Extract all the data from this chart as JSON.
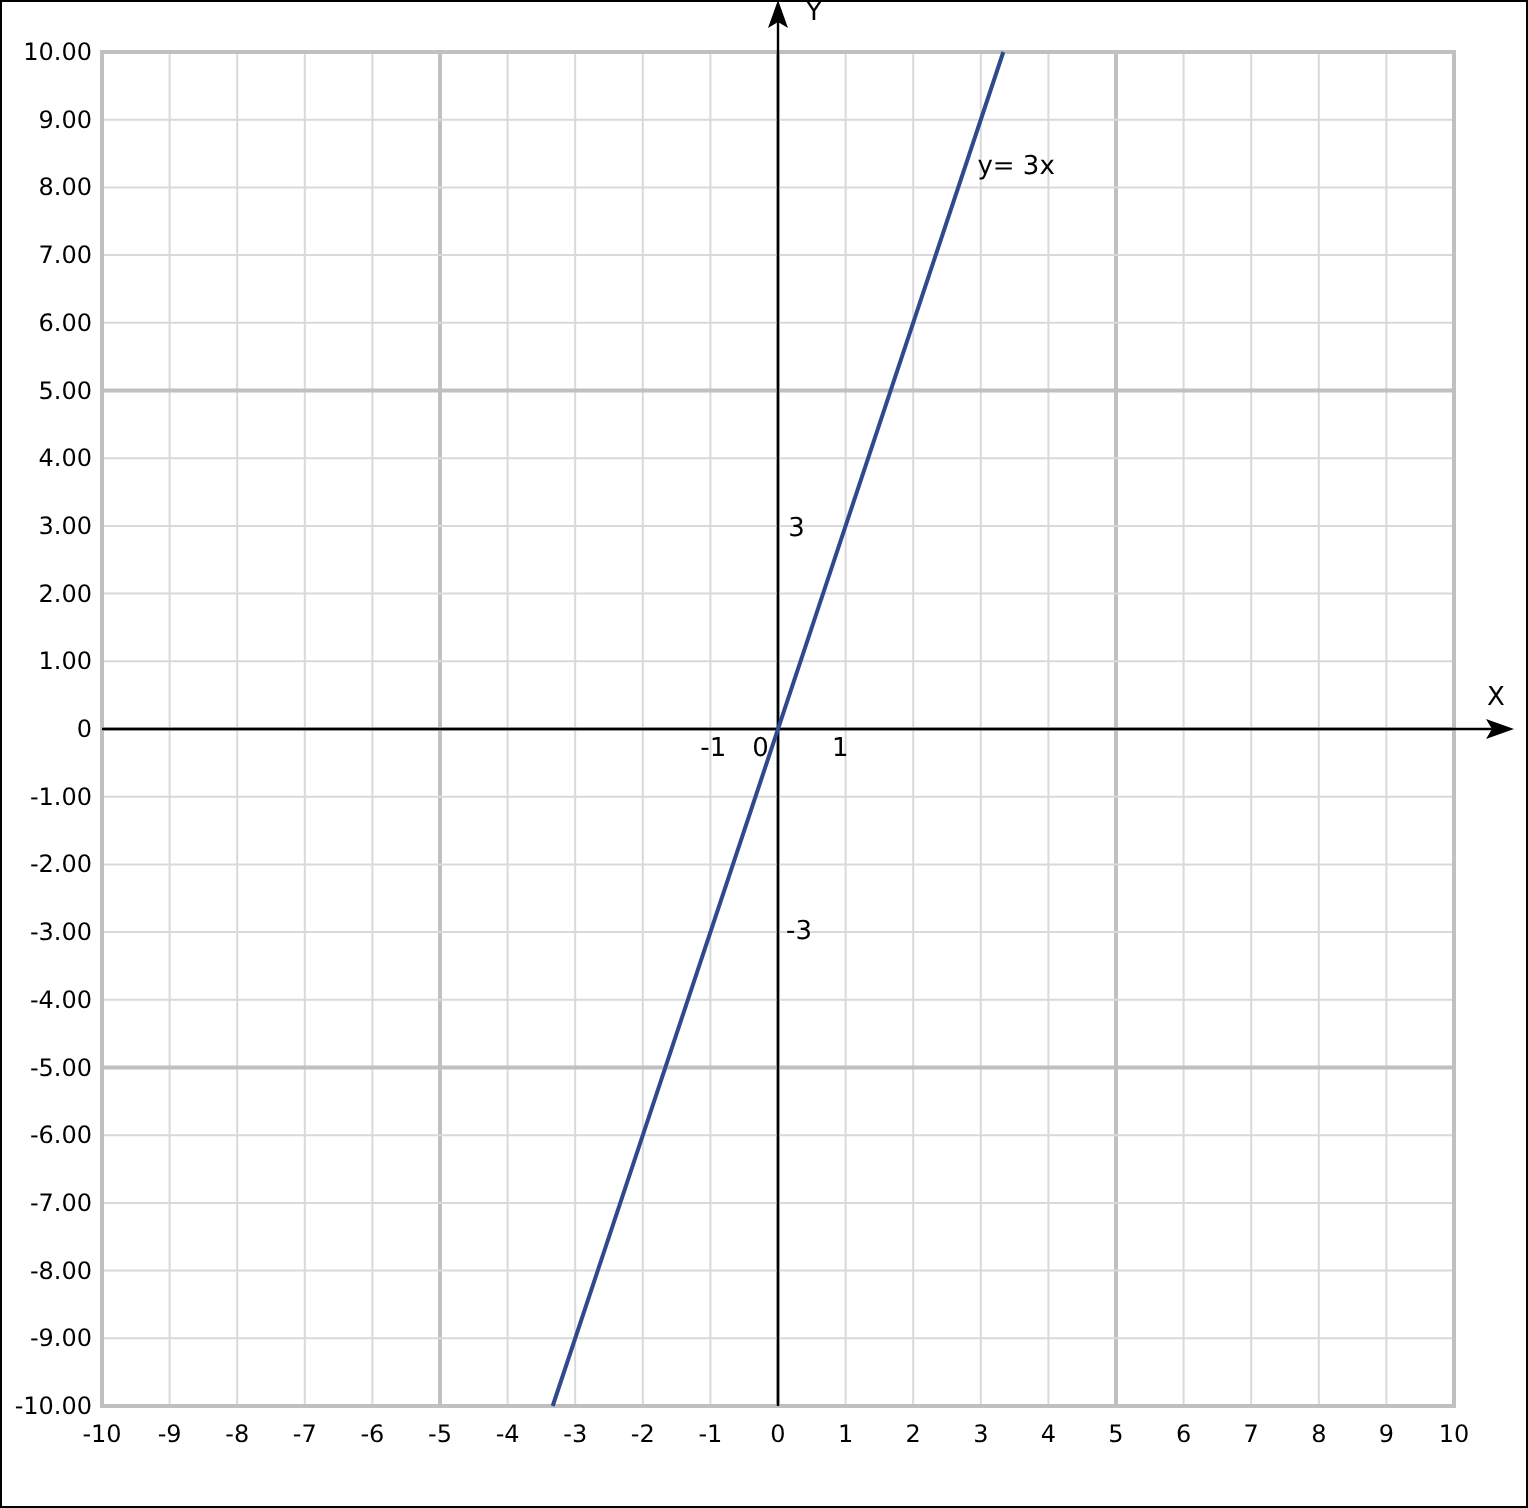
{
  "chart_data": {
    "type": "line",
    "xlabel": "X",
    "ylabel": "Y",
    "xlim": [
      -10,
      10
    ],
    "ylim": [
      -10,
      10
    ],
    "xticks": [
      -10,
      -9,
      -8,
      -7,
      -6,
      -5,
      -4,
      -3,
      -2,
      -1,
      0,
      1,
      2,
      3,
      4,
      5,
      6,
      7,
      8,
      9,
      10
    ],
    "yticks": [
      {
        "value": -10,
        "label": "-10.00"
      },
      {
        "value": -9,
        "label": "-9.00"
      },
      {
        "value": -8,
        "label": "-8.00"
      },
      {
        "value": -7,
        "label": "-7.00"
      },
      {
        "value": -6,
        "label": "-6.00"
      },
      {
        "value": -5,
        "label": "-5.00"
      },
      {
        "value": -4,
        "label": "-4.00"
      },
      {
        "value": -3,
        "label": "-3.00"
      },
      {
        "value": -2,
        "label": "-2.00"
      },
      {
        "value": -1,
        "label": "-1.00"
      },
      {
        "value": 0,
        "label": "0"
      },
      {
        "value": 1,
        "label": "1.00"
      },
      {
        "value": 2,
        "label": "2.00"
      },
      {
        "value": 3,
        "label": "3.00"
      },
      {
        "value": 4,
        "label": "4.00"
      },
      {
        "value": 5,
        "label": "5.00"
      },
      {
        "value": 6,
        "label": "6.00"
      },
      {
        "value": 7,
        "label": "7.00"
      },
      {
        "value": 8,
        "label": "8.00"
      },
      {
        "value": 9,
        "label": "9.00"
      },
      {
        "value": 10,
        "label": "10.00"
      }
    ],
    "grid": true,
    "marker": "none",
    "line_style": "solid",
    "series": [
      {
        "color": "#2e4a8c",
        "x": [
          -3.333,
          3.333
        ],
        "values": [
          -10,
          10
        ]
      }
    ],
    "annotations": [
      "y= 3x",
      "3",
      "-3",
      "-1",
      "0",
      "1"
    ]
  }
}
